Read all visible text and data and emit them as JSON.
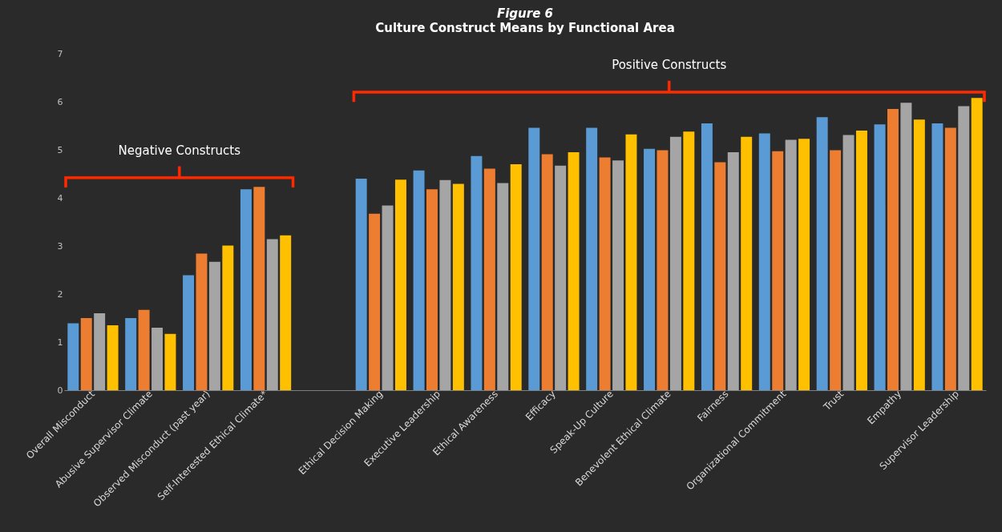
{
  "chart_data": {
    "type": "bar",
    "title": "Figure 6",
    "subtitle": "Culture Construct Means by Functional Area",
    "categories": [
      "Overall Misconduct",
      "Abusive Supervisor Climate",
      "Observed Misconduct (past year)",
      "Self-Interested Ethical Climate*",
      null,
      "Ethical Decision Making",
      "Executive Leadership",
      "Ethical Awareness",
      "Efficacy",
      "Speak-Up Culture",
      "Benevolent Ethical Climate",
      "Fairness",
      "Organizational Commitment",
      "Trust",
      "Empathy",
      "Supervisor Leadership"
    ],
    "series": [
      {
        "color": "#5b9bd5",
        "values": [
          1.39,
          1.5,
          2.39,
          4.18,
          null,
          4.4,
          4.57,
          4.87,
          5.46,
          5.46,
          5.02,
          5.55,
          5.34,
          5.68,
          5.53,
          5.55
        ]
      },
      {
        "color": "#ed7d31",
        "values": [
          1.5,
          1.67,
          2.84,
          4.23,
          null,
          3.67,
          4.18,
          4.61,
          4.91,
          4.84,
          4.99,
          4.74,
          4.97,
          4.99,
          5.85,
          5.46
        ]
      },
      {
        "color": "#a5a5a5",
        "values": [
          1.6,
          1.3,
          2.67,
          3.14,
          null,
          3.84,
          4.37,
          4.31,
          4.67,
          4.78,
          5.27,
          4.95,
          5.21,
          5.31,
          5.98,
          5.91
        ]
      },
      {
        "color": "#ffc000",
        "values": [
          1.35,
          1.17,
          3.01,
          3.22,
          null,
          4.38,
          4.29,
          4.7,
          4.95,
          5.32,
          5.38,
          5.27,
          5.23,
          5.4,
          5.63,
          6.08
        ]
      }
    ],
    "ylim": [
      0,
      7
    ],
    "yticks": [
      0,
      1,
      2,
      3,
      4,
      5,
      6,
      7
    ],
    "grid": false,
    "legend": false,
    "annotations": [
      "Negative Constructs",
      "Positive Constructs"
    ]
  }
}
